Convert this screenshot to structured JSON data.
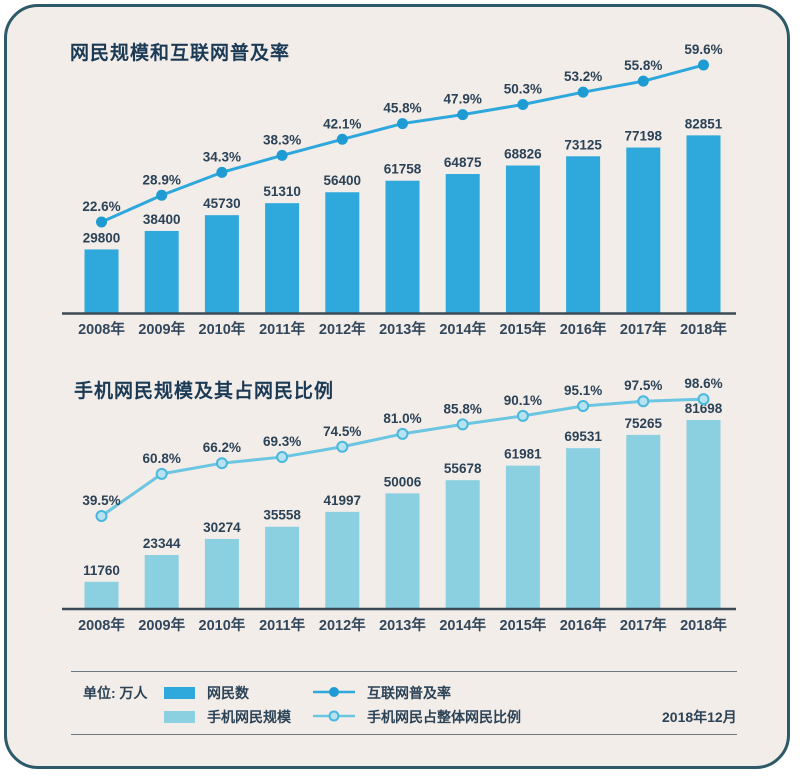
{
  "colors": {
    "page_bg": "#FFFFFF",
    "card_bg": "#F2EDE8",
    "card_border": "#2D5968",
    "bar1": "#2FA8DC",
    "bar2": "#8BD0E0",
    "line1": "#2EA7DC",
    "line1_dot": "#1E9BD2",
    "line2": "#6CC6E2",
    "line2_dot_fill": "#B7E2EF",
    "line2_dot_stroke": "#49B7DE",
    "axis": "#3C4A55",
    "divider": "#6E7880",
    "text": "#2B4257",
    "title": "#1B3A55"
  },
  "chart_data": [
    {
      "type": "bar+line",
      "title": "网民规模和互联网普及率",
      "categories": [
        "2008年",
        "2009年",
        "2010年",
        "2011年",
        "2012年",
        "2013年",
        "2014年",
        "2015年",
        "2016年",
        "2017年",
        "2018年"
      ],
      "unit": "万人",
      "series": [
        {
          "name": "网民数",
          "type": "bar",
          "values": [
            29800,
            38400,
            45730,
            51310,
            56400,
            61758,
            64875,
            68826,
            73125,
            77198,
            82851
          ]
        },
        {
          "name": "互联网普及率",
          "type": "line",
          "unit": "%",
          "values": [
            22.6,
            28.9,
            34.3,
            38.3,
            42.1,
            45.8,
            47.9,
            50.3,
            53.2,
            55.8,
            59.6
          ]
        }
      ],
      "legend_position": "bottom",
      "grid": false
    },
    {
      "type": "bar+line",
      "title": "手机网民规模及其占网民比例",
      "categories": [
        "2008年",
        "2009年",
        "2010年",
        "2011年",
        "2012年",
        "2013年",
        "2014年",
        "2015年",
        "2016年",
        "2017年",
        "2018年"
      ],
      "unit": "万人",
      "series": [
        {
          "name": "手机网民规模",
          "type": "bar",
          "values": [
            11760,
            23344,
            30274,
            35558,
            41997,
            50006,
            55678,
            61981,
            69531,
            75265,
            81698
          ]
        },
        {
          "name": "手机网民占整体网民比例",
          "type": "line",
          "unit": "%",
          "values": [
            39.5,
            60.8,
            66.2,
            69.3,
            74.5,
            81.0,
            85.8,
            90.1,
            95.1,
            97.5,
            98.6
          ]
        }
      ],
      "legend_position": "bottom",
      "grid": false
    }
  ],
  "legend": {
    "unit_label": "单位: 万人",
    "items": [
      {
        "swatch": "bar-dark-blue",
        "label": "网民数"
      },
      {
        "swatch": "line-dark-blue",
        "label": "互联网普及率"
      },
      {
        "swatch": "bar-light-blue",
        "label": "手机网民规模"
      },
      {
        "swatch": "line-light-blue",
        "label": "手机网民占整体网民比例"
      }
    ],
    "date_label": "2018年12月"
  }
}
